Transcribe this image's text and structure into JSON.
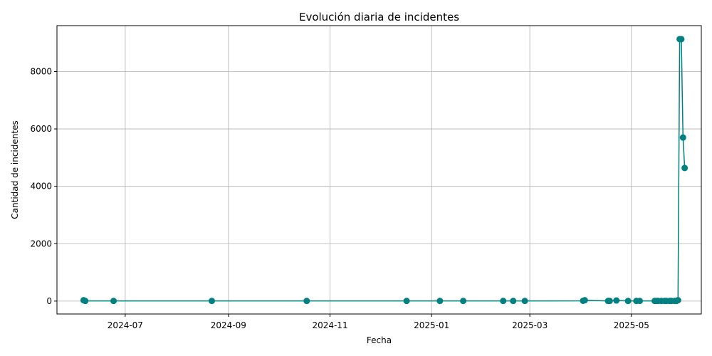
{
  "chart_data": {
    "type": "line",
    "title": "Evolución diaria de incidentes",
    "xlabel": "Fecha",
    "ylabel": "Cantidad de incidentes",
    "grid": true,
    "legend": "none",
    "color": "#008080",
    "xlim": [
      "2024-05-21",
      "2025-06-12"
    ],
    "ylim": [
      -450,
      9600
    ],
    "x_ticks": [
      "2024-07-01",
      "2024-09-01",
      "2024-11-01",
      "2025-01-01",
      "2025-03-01",
      "2025-05-01"
    ],
    "x_tick_labels": [
      "2024-07",
      "2024-09",
      "2024-11",
      "2025-01",
      "2025-03",
      "2025-05"
    ],
    "y_ticks": [
      0,
      2000,
      4000,
      6000,
      8000
    ],
    "y_tick_labels": [
      "0",
      "2000",
      "4000",
      "6000",
      "8000"
    ],
    "series": [
      {
        "x": [
          "2024-06-06",
          "2024-06-07",
          "2024-06-24",
          "2024-08-22",
          "2024-10-18",
          "2024-12-17",
          "2025-01-06",
          "2025-01-20",
          "2025-02-13",
          "2025-02-19",
          "2025-02-26",
          "2025-04-02",
          "2025-04-03",
          "2025-04-17",
          "2025-04-18",
          "2025-04-22",
          "2025-04-29",
          "2025-05-04",
          "2025-05-06",
          "2025-05-15",
          "2025-05-16",
          "2025-05-17",
          "2025-05-19",
          "2025-05-21",
          "2025-05-22",
          "2025-05-24",
          "2025-05-25",
          "2025-05-27",
          "2025-05-28",
          "2025-05-29",
          "2025-05-30",
          "2025-05-31",
          "2025-06-01",
          "2025-06-02"
        ],
        "y": [
          30,
          5,
          5,
          5,
          5,
          5,
          5,
          5,
          5,
          5,
          5,
          10,
          30,
          5,
          5,
          20,
          5,
          5,
          5,
          5,
          5,
          5,
          5,
          5,
          5,
          5,
          5,
          5,
          5,
          30,
          9130,
          9130,
          5700,
          4640
        ]
      }
    ]
  }
}
